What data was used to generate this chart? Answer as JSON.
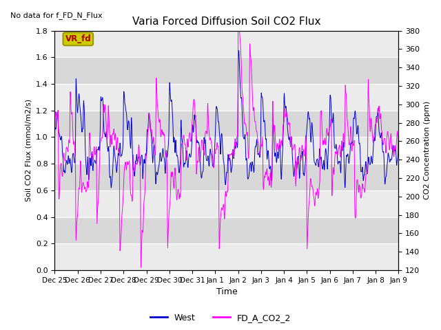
{
  "title": "Varia Forced Diffusion Soil CO2 Flux",
  "no_data_text": "No data for f_FD_N_Flux",
  "xlabel": "Time",
  "ylabel_left": "Soil CO2 Flux (mmol/m2/s)",
  "ylabel_right": "CO2 Concentration (ppm)",
  "ylim_left": [
    0.0,
    1.8
  ],
  "ylim_right": [
    120,
    380
  ],
  "line_blue_color": "#0000CC",
  "line_magenta_color": "#FF00FF",
  "legend_labels": [
    "West",
    "FD_A_CO2_2"
  ],
  "vr_fd_box_color": "#CCCC00",
  "vr_fd_text_color": "#AA0000",
  "background_color": "#FFFFFF",
  "plot_bg_light": "#EBEBEB",
  "plot_bg_dark": "#D8D8D8",
  "grid_color": "#FFFFFF"
}
